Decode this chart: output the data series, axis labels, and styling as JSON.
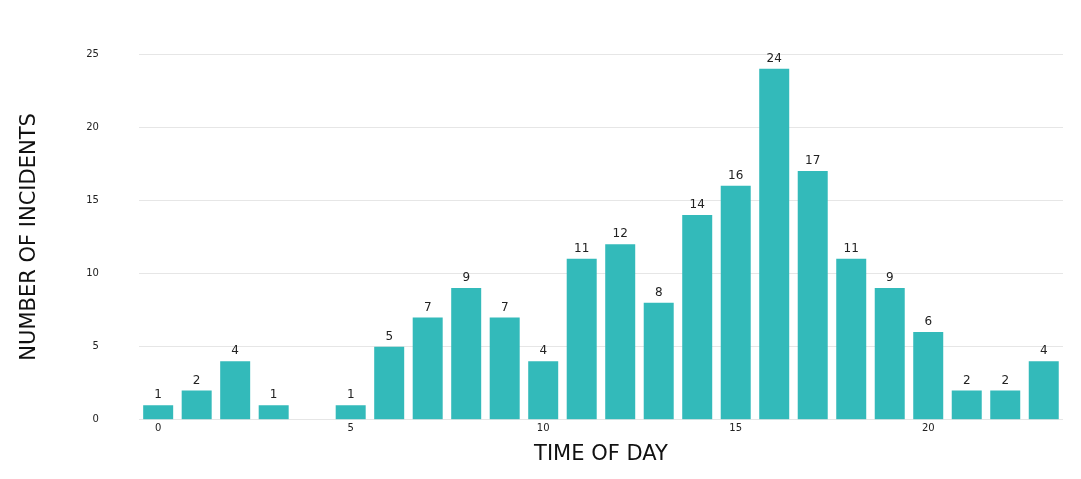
{
  "chart_data": {
    "type": "bar",
    "xlabel": "TIME OF DAY",
    "ylabel": "NUMBER OF INCIDENTS",
    "categories": [
      "0",
      null,
      null,
      null,
      null,
      "5",
      null,
      null,
      null,
      null,
      "10",
      null,
      null,
      null,
      null,
      "15",
      null,
      null,
      null,
      null,
      "20",
      null,
      null,
      null
    ],
    "values": [
      1,
      2,
      4,
      1,
      null,
      1,
      5,
      7,
      9,
      7,
      4,
      11,
      12,
      8,
      14,
      16,
      24,
      17,
      11,
      9,
      6,
      2,
      2,
      4
    ],
    "color": "#33baba",
    "ylim": [
      0,
      25
    ],
    "yticks": [
      0,
      5,
      10,
      15,
      20,
      25
    ],
    "grid": "y",
    "data_labels": true,
    "legend": false
  }
}
